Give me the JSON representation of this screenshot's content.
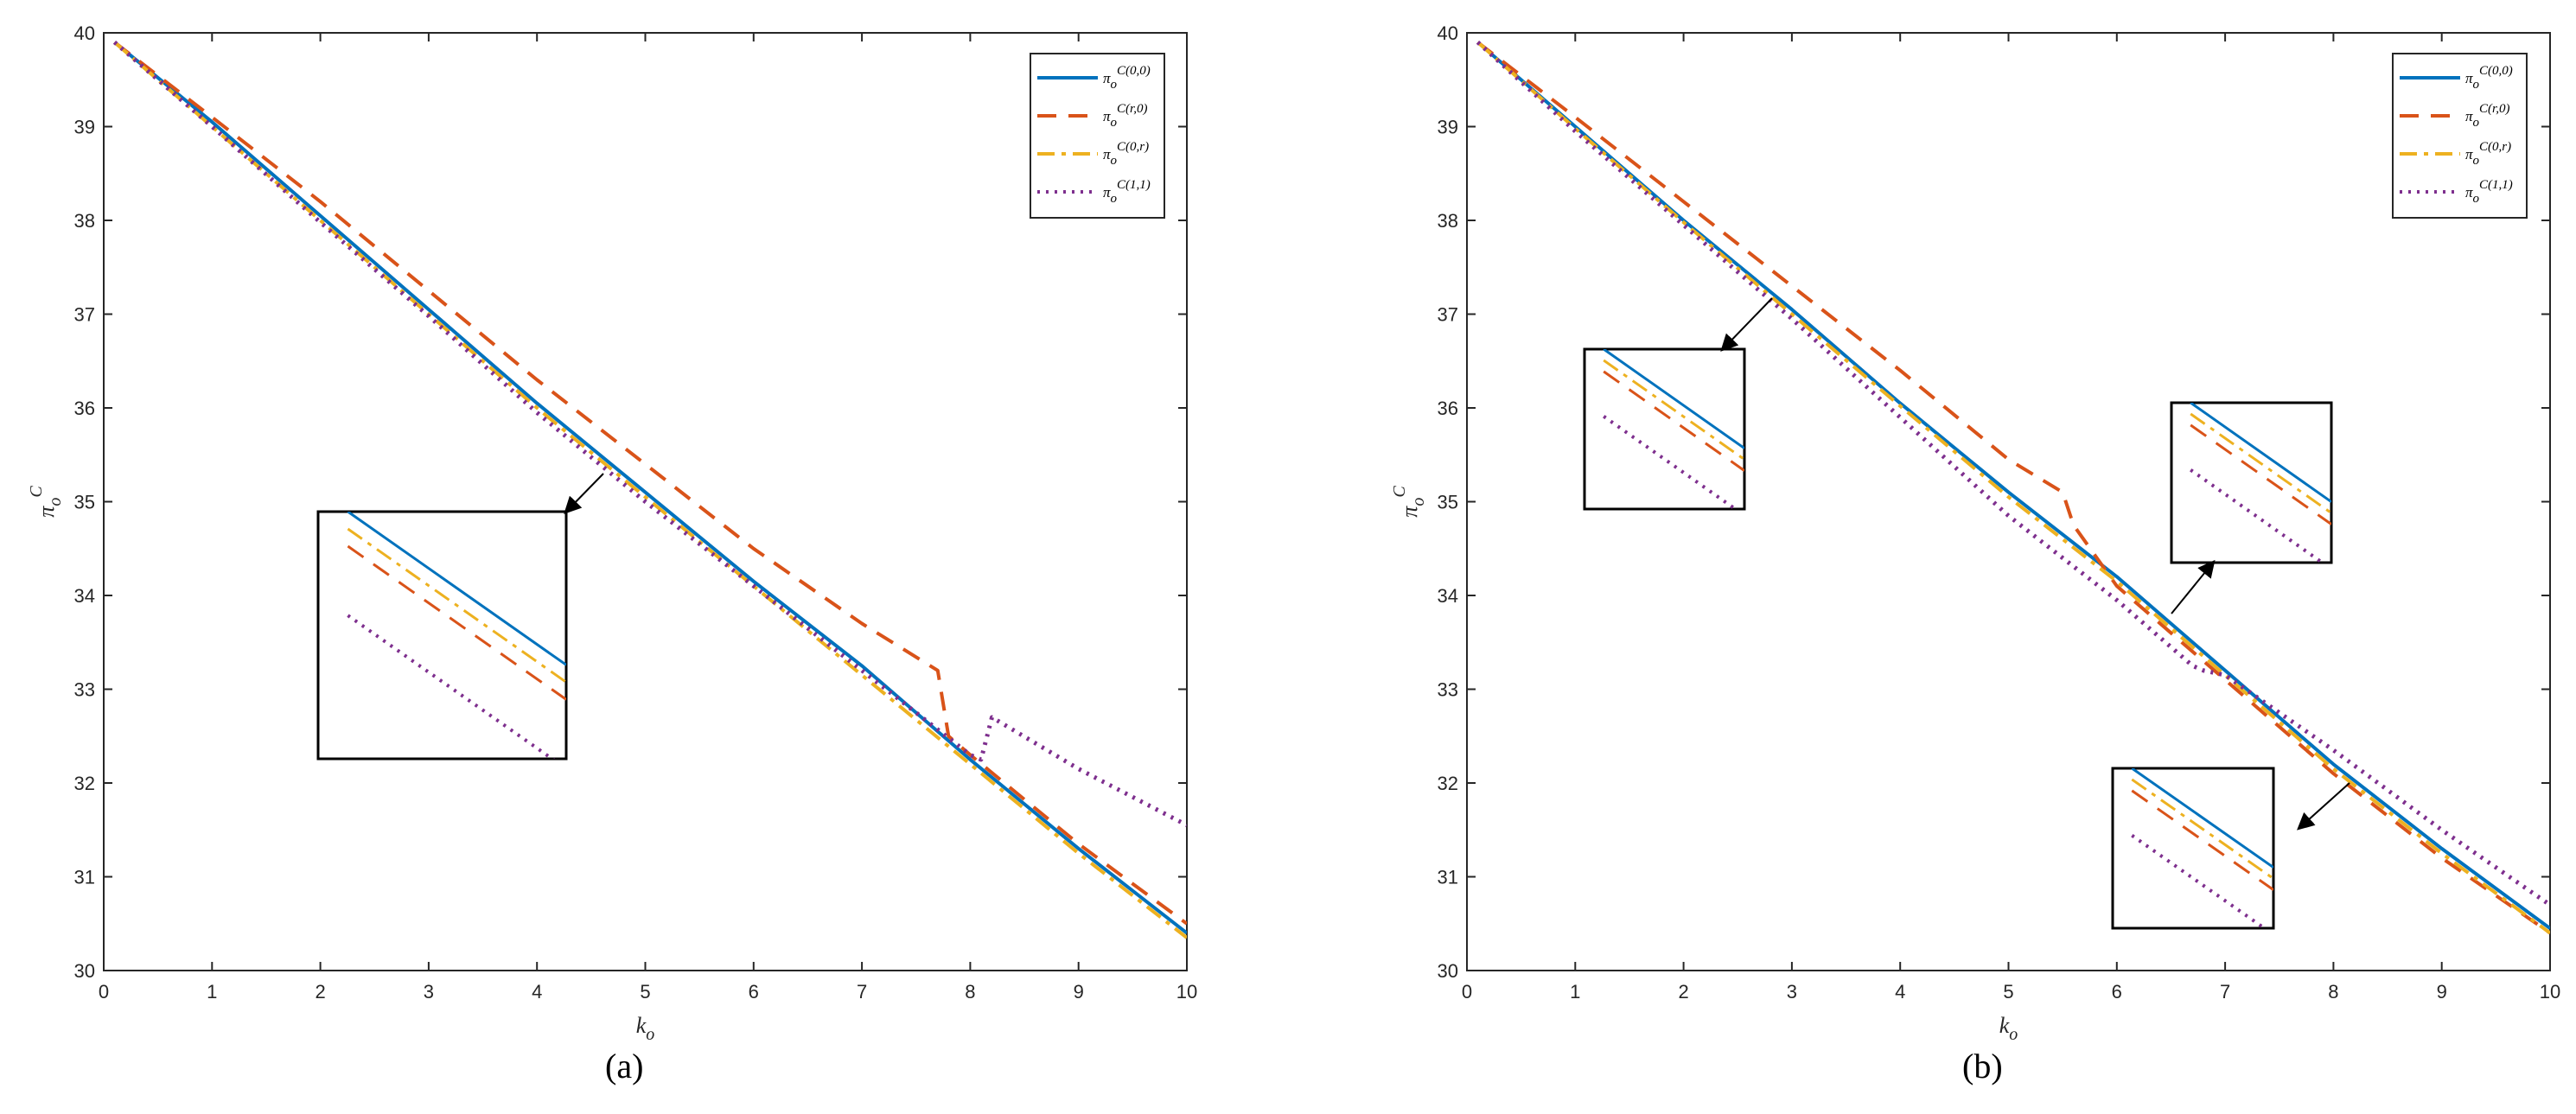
{
  "chart_data": [
    {
      "type": "line",
      "panel_label": "(a)",
      "xlabel": "k_o",
      "ylabel": "π_o^C",
      "xlim": [
        0,
        10
      ],
      "ylim": [
        30,
        40
      ],
      "xticks": [
        "0",
        "1",
        "2",
        "3",
        "4",
        "5",
        "6",
        "7",
        "8",
        "9",
        "10"
      ],
      "yticks": [
        "30",
        "31",
        "32",
        "33",
        "34",
        "35",
        "36",
        "37",
        "38",
        "39",
        "40"
      ],
      "grid": false,
      "legend_position": "top-right",
      "series": [
        {
          "name": "π_o^C(0,0)",
          "color": "#0072BD",
          "dash": "solid",
          "x": [
            0.1,
            1,
            2,
            3,
            4,
            5,
            6,
            7,
            8,
            9,
            10
          ],
          "y": [
            39.9,
            39.05,
            38.05,
            37.05,
            36.05,
            35.1,
            34.15,
            33.25,
            32.25,
            31.3,
            30.4
          ]
        },
        {
          "name": "π_o^C(r,0)",
          "color": "#D95319",
          "dash": "dashed",
          "x": [
            0.1,
            1,
            2,
            3,
            4,
            5,
            6,
            7,
            7.7,
            7.8,
            8,
            9,
            10
          ],
          "y": [
            39.9,
            39.1,
            38.2,
            37.25,
            36.3,
            35.4,
            34.5,
            33.7,
            33.2,
            32.5,
            32.3,
            31.35,
            30.5
          ]
        },
        {
          "name": "π_o^C(0,r)",
          "color": "#EDB120",
          "dash": "dashdot",
          "x": [
            0.1,
            1,
            2,
            3,
            4,
            5,
            6,
            7,
            8,
            9,
            10
          ],
          "y": [
            39.9,
            39.0,
            38.0,
            37.0,
            36.0,
            35.05,
            34.1,
            33.15,
            32.2,
            31.25,
            30.35
          ]
        },
        {
          "name": "π_o^C(1,1)",
          "color": "#7E2F8E",
          "dash": "dotted",
          "x": [
            0.1,
            1,
            2,
            3,
            4,
            5,
            6,
            7,
            8,
            8.1,
            8.2,
            9,
            10
          ],
          "y": [
            39.9,
            39.0,
            37.98,
            36.98,
            35.95,
            35.0,
            34.1,
            33.2,
            32.3,
            32.25,
            32.7,
            32.15,
            31.55
          ]
        }
      ]
    },
    {
      "type": "line",
      "panel_label": "(b)",
      "xlabel": "k_o",
      "ylabel": "π_o^C",
      "xlim": [
        0,
        10
      ],
      "ylim": [
        30,
        40
      ],
      "xticks": [
        "0",
        "1",
        "2",
        "3",
        "4",
        "5",
        "6",
        "7",
        "8",
        "9",
        "10"
      ],
      "yticks": [
        "30",
        "31",
        "32",
        "33",
        "34",
        "35",
        "36",
        "37",
        "38",
        "39",
        "40"
      ],
      "grid": false,
      "legend_position": "top-right",
      "series": [
        {
          "name": "π_o^C(0,0)",
          "color": "#0072BD",
          "dash": "solid",
          "x": [
            0.1,
            1,
            2,
            3,
            4,
            5,
            6,
            7,
            8,
            9,
            10
          ],
          "y": [
            39.9,
            39.0,
            38.0,
            37.05,
            36.05,
            35.1,
            34.2,
            33.2,
            32.2,
            31.3,
            30.45
          ]
        },
        {
          "name": "π_o^C(r,0)",
          "color": "#D95319",
          "dash": "dashed",
          "x": [
            0.1,
            1,
            2,
            3,
            4,
            5,
            5.5,
            5.6,
            6,
            7,
            8,
            9,
            10
          ],
          "y": [
            39.9,
            39.1,
            38.2,
            37.3,
            36.4,
            35.45,
            35.1,
            34.75,
            34.1,
            33.1,
            32.1,
            31.2,
            30.4
          ]
        },
        {
          "name": "π_o^C(0,r)",
          "color": "#EDB120",
          "dash": "dashdot",
          "x": [
            0.1,
            1,
            2,
            3,
            4,
            5,
            6,
            7,
            8,
            9,
            10
          ],
          "y": [
            39.9,
            38.98,
            37.98,
            37.0,
            36.02,
            35.05,
            34.15,
            33.15,
            32.15,
            31.25,
            30.4
          ]
        },
        {
          "name": "π_o^C(1,1)",
          "color": "#7E2F8E",
          "dash": "dotted",
          "x": [
            0.1,
            1,
            2,
            3,
            4,
            5,
            6,
            6.7,
            6.8,
            7,
            8,
            9,
            10
          ],
          "y": [
            39.9,
            38.95,
            37.95,
            36.95,
            35.9,
            34.85,
            33.95,
            33.25,
            33.2,
            33.15,
            32.35,
            31.5,
            30.7
          ]
        }
      ]
    }
  ]
}
